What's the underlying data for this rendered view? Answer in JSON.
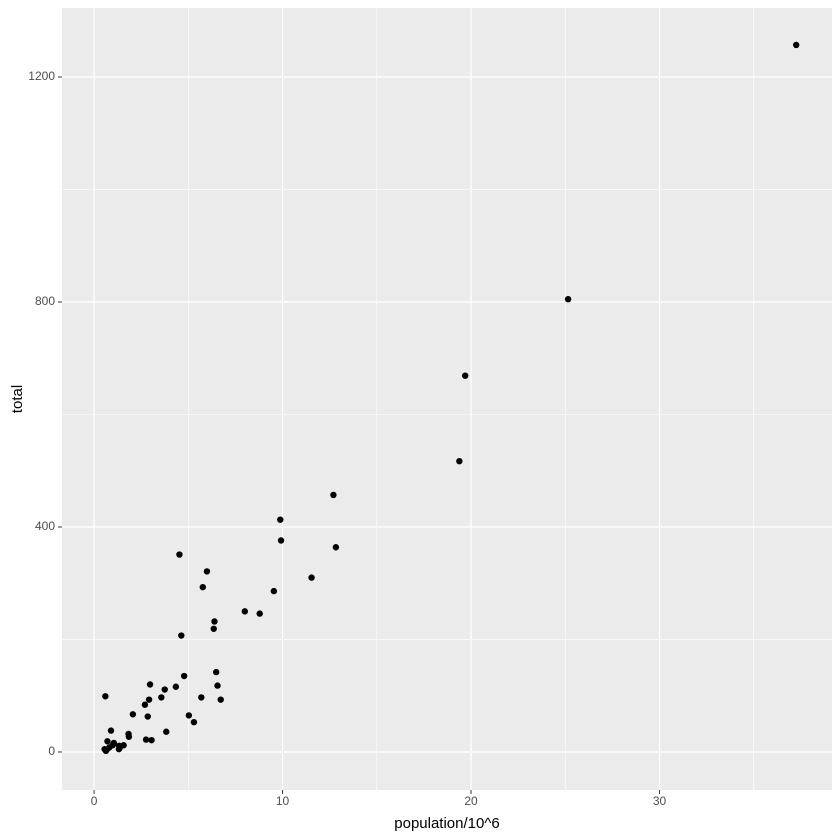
{
  "chart_data": {
    "type": "scatter",
    "x_label": "population/10^6",
    "y_label": "total",
    "x": [
      4.78,
      0.71,
      6.39,
      2.92,
      37.25,
      5.03,
      3.57,
      0.9,
      0.6,
      19.69,
      9.92,
      1.36,
      1.57,
      12.83,
      6.48,
      3.05,
      2.85,
      4.34,
      4.53,
      1.33,
      5.77,
      6.55,
      9.88,
      5.3,
      2.97,
      5.99,
      0.99,
      1.83,
      2.7,
      1.32,
      8.79,
      2.06,
      19.38,
      9.54,
      0.67,
      11.54,
      3.75,
      3.83,
      12.7,
      1.05,
      4.63,
      0.81,
      6.35,
      25.15,
      2.76,
      0.63,
      8.0,
      6.72,
      1.85,
      5.69,
      0.56
    ],
    "values": [
      135,
      19,
      232,
      93,
      1257,
      65,
      97,
      38,
      99,
      669,
      376,
      7,
      12,
      364,
      142,
      21,
      63,
      116,
      351,
      11,
      293,
      118,
      413,
      53,
      120,
      321,
      12,
      32,
      84,
      5,
      246,
      67,
      517,
      286,
      4,
      310,
      111,
      36,
      457,
      16,
      207,
      8,
      219,
      805,
      22,
      2,
      250,
      93,
      27,
      97,
      5
    ],
    "color": "#000000",
    "xlim": [
      -1.7,
      39.15
    ],
    "ylim": [
      -67.6,
      1322.7
    ],
    "xticks": [
      0,
      10,
      20,
      30
    ],
    "yticks": [
      0,
      400,
      800,
      1200
    ],
    "xminor": [
      5,
      15,
      25,
      35
    ],
    "yminor": [
      200,
      600,
      1000
    ],
    "grid": true
  }
}
